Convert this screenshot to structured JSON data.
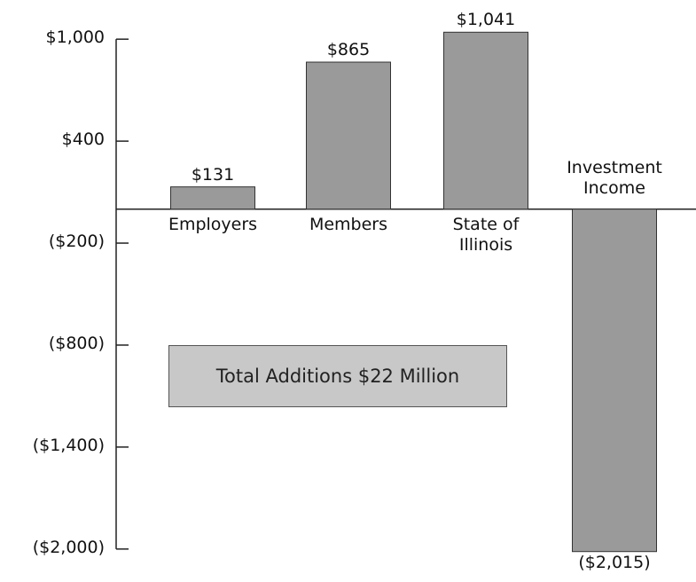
{
  "chart_data": {
    "type": "bar",
    "categories": [
      "Employers",
      "Members",
      "State of Illinois",
      "Investment Income"
    ],
    "values": [
      131,
      865,
      1041,
      -2015
    ],
    "value_labels": [
      "$131",
      "$865",
      "$1,041",
      "($2,015)"
    ],
    "color": "#9a9a9a",
    "ylim": [
      -2100,
      1100
    ],
    "yticks": [
      {
        "value": 1000,
        "label": "$1,000"
      },
      {
        "value": 400,
        "label": "$400"
      },
      {
        "value": -200,
        "label": "($200)"
      },
      {
        "value": -800,
        "label": "($800)"
      },
      {
        "value": -1400,
        "label": "($1,400)"
      },
      {
        "value": -2000,
        "label": "($2,000)"
      }
    ],
    "annotation": "Total Additions $22 Million"
  }
}
